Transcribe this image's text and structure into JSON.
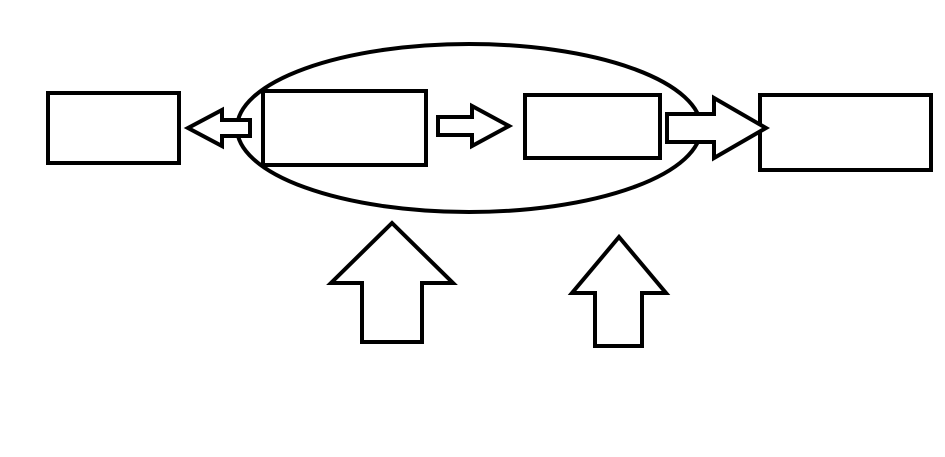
{
  "diagram": {
    "nodes": [
      {
        "id": "box-1",
        "label": ""
      },
      {
        "id": "box-2",
        "label": ""
      },
      {
        "id": "box-3",
        "label": ""
      },
      {
        "id": "box-4",
        "label": ""
      }
    ],
    "group": {
      "members": [
        "box-2",
        "box-3"
      ],
      "label": ""
    },
    "edges": [
      {
        "from": "box-2",
        "to": "box-1"
      },
      {
        "from": "box-2",
        "to": "box-3"
      },
      {
        "from": "box-3",
        "to": "box-4"
      }
    ],
    "inputs": [
      {
        "target": "box-2",
        "label": ""
      },
      {
        "target": "box-3",
        "label": ""
      }
    ],
    "colors": {
      "stroke": "#000000",
      "background": "#ffffff"
    }
  }
}
